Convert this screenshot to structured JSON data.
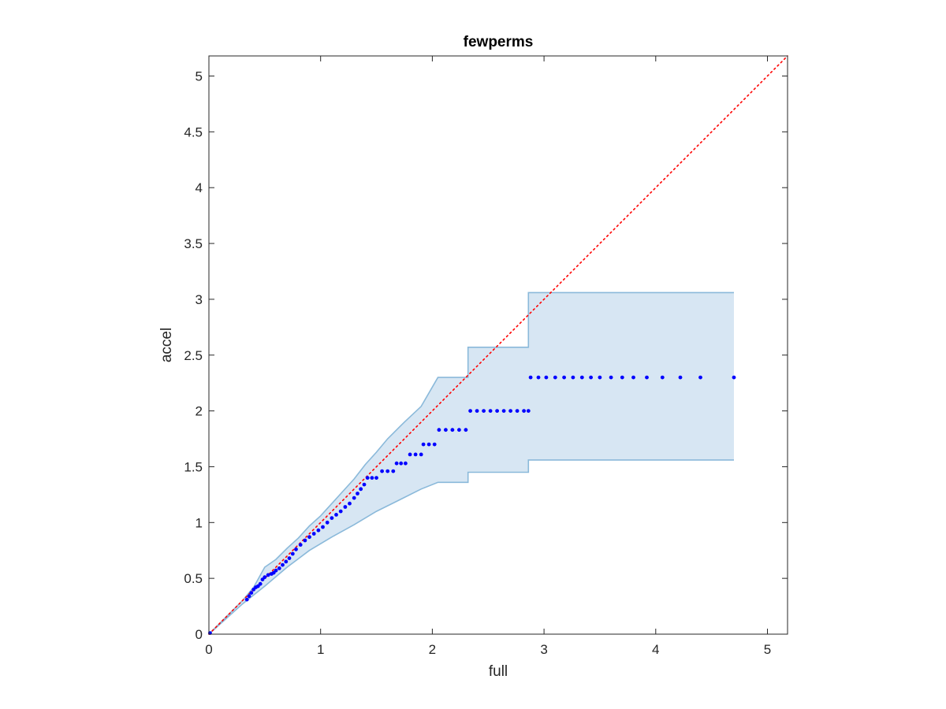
{
  "chart_data": {
    "type": "scatter",
    "title": "fewperms",
    "xlabel": "full",
    "ylabel": "accel",
    "xlim": [
      0,
      5.18
    ],
    "ylim": [
      0,
      5.18
    ],
    "xticks": [
      0,
      1,
      2,
      3,
      4,
      5
    ],
    "yticks": [
      0,
      0.5,
      1,
      1.5,
      2,
      2.5,
      3,
      3.5,
      4,
      4.5,
      5
    ],
    "xtick_labels": [
      "0",
      "1",
      "2",
      "3",
      "4",
      "5"
    ],
    "ytick_labels": [
      "0",
      "0.5",
      "1",
      "1.5",
      "2",
      "2.5",
      "3",
      "3.5",
      "4",
      "4.5",
      "5"
    ],
    "grid": false,
    "reference_line": {
      "style": "dotted",
      "color": "#ff0000",
      "from": [
        0,
        0
      ],
      "to": [
        5.18,
        5.18
      ]
    },
    "band": {
      "color": "#d7e6f3",
      "edge_color": "#8ab9da",
      "upper": [
        [
          0,
          0
        ],
        [
          0.3,
          0.3
        ],
        [
          0.4,
          0.42
        ],
        [
          0.5,
          0.6
        ],
        [
          0.6,
          0.67
        ],
        [
          0.7,
          0.77
        ],
        [
          0.8,
          0.86
        ],
        [
          0.9,
          0.97
        ],
        [
          1.0,
          1.06
        ],
        [
          1.1,
          1.17
        ],
        [
          1.2,
          1.28
        ],
        [
          1.3,
          1.39
        ],
        [
          1.4,
          1.52
        ],
        [
          1.5,
          1.63
        ],
        [
          1.6,
          1.75
        ],
        [
          1.75,
          1.9
        ],
        [
          1.9,
          2.04
        ],
        [
          2.05,
          2.3
        ],
        [
          2.32,
          2.3
        ],
        [
          2.32,
          2.57
        ],
        [
          2.86,
          2.57
        ],
        [
          2.86,
          3.06
        ],
        [
          4.7,
          3.06
        ]
      ],
      "lower": [
        [
          0,
          0
        ],
        [
          0.3,
          0.27
        ],
        [
          0.5,
          0.43
        ],
        [
          0.7,
          0.6
        ],
        [
          0.9,
          0.75
        ],
        [
          1.1,
          0.87
        ],
        [
          1.3,
          0.98
        ],
        [
          1.5,
          1.1
        ],
        [
          1.7,
          1.2
        ],
        [
          1.9,
          1.3
        ],
        [
          2.05,
          1.36
        ],
        [
          2.32,
          1.36
        ],
        [
          2.32,
          1.45
        ],
        [
          2.86,
          1.45
        ],
        [
          2.86,
          1.56
        ],
        [
          4.7,
          1.56
        ]
      ]
    },
    "series": [
      {
        "color": "#0000ff",
        "points": [
          [
            0.01,
            0.01
          ],
          [
            0.34,
            0.31
          ],
          [
            0.36,
            0.34
          ],
          [
            0.38,
            0.37
          ],
          [
            0.4,
            0.4
          ],
          [
            0.42,
            0.42
          ],
          [
            0.44,
            0.43
          ],
          [
            0.46,
            0.45
          ],
          [
            0.48,
            0.49
          ],
          [
            0.5,
            0.51
          ],
          [
            0.53,
            0.53
          ],
          [
            0.56,
            0.54
          ],
          [
            0.58,
            0.55
          ],
          [
            0.6,
            0.57
          ],
          [
            0.63,
            0.59
          ],
          [
            0.66,
            0.62
          ],
          [
            0.69,
            0.65
          ],
          [
            0.72,
            0.68
          ],
          [
            0.75,
            0.72
          ],
          [
            0.78,
            0.76
          ],
          [
            0.82,
            0.8
          ],
          [
            0.86,
            0.84
          ],
          [
            0.9,
            0.87
          ],
          [
            0.94,
            0.9
          ],
          [
            0.98,
            0.93
          ],
          [
            1.02,
            0.96
          ],
          [
            1.06,
            1.0
          ],
          [
            1.1,
            1.04
          ],
          [
            1.14,
            1.07
          ],
          [
            1.18,
            1.1
          ],
          [
            1.22,
            1.14
          ],
          [
            1.26,
            1.17
          ],
          [
            1.3,
            1.22
          ],
          [
            1.33,
            1.26
          ],
          [
            1.36,
            1.3
          ],
          [
            1.39,
            1.34
          ],
          [
            1.42,
            1.4
          ],
          [
            1.46,
            1.4
          ],
          [
            1.5,
            1.4
          ],
          [
            1.55,
            1.46
          ],
          [
            1.6,
            1.46
          ],
          [
            1.65,
            1.46
          ],
          [
            1.68,
            1.53
          ],
          [
            1.72,
            1.53
          ],
          [
            1.76,
            1.53
          ],
          [
            1.8,
            1.61
          ],
          [
            1.85,
            1.61
          ],
          [
            1.9,
            1.61
          ],
          [
            1.92,
            1.7
          ],
          [
            1.97,
            1.7
          ],
          [
            2.02,
            1.7
          ],
          [
            2.06,
            1.83
          ],
          [
            2.12,
            1.83
          ],
          [
            2.18,
            1.83
          ],
          [
            2.24,
            1.83
          ],
          [
            2.3,
            1.83
          ],
          [
            2.34,
            2.0
          ],
          [
            2.4,
            2.0
          ],
          [
            2.46,
            2.0
          ],
          [
            2.52,
            2.0
          ],
          [
            2.58,
            2.0
          ],
          [
            2.64,
            2.0
          ],
          [
            2.7,
            2.0
          ],
          [
            2.76,
            2.0
          ],
          [
            2.82,
            2.0
          ],
          [
            2.86,
            2.0
          ],
          [
            2.88,
            2.3
          ],
          [
            2.95,
            2.3
          ],
          [
            3.02,
            2.3
          ],
          [
            3.1,
            2.3
          ],
          [
            3.18,
            2.3
          ],
          [
            3.26,
            2.3
          ],
          [
            3.34,
            2.3
          ],
          [
            3.42,
            2.3
          ],
          [
            3.5,
            2.3
          ],
          [
            3.6,
            2.3
          ],
          [
            3.7,
            2.3
          ],
          [
            3.8,
            2.3
          ],
          [
            3.92,
            2.3
          ],
          [
            4.06,
            2.3
          ],
          [
            4.22,
            2.3
          ],
          [
            4.4,
            2.3
          ],
          [
            4.7,
            2.3
          ]
        ]
      }
    ]
  }
}
